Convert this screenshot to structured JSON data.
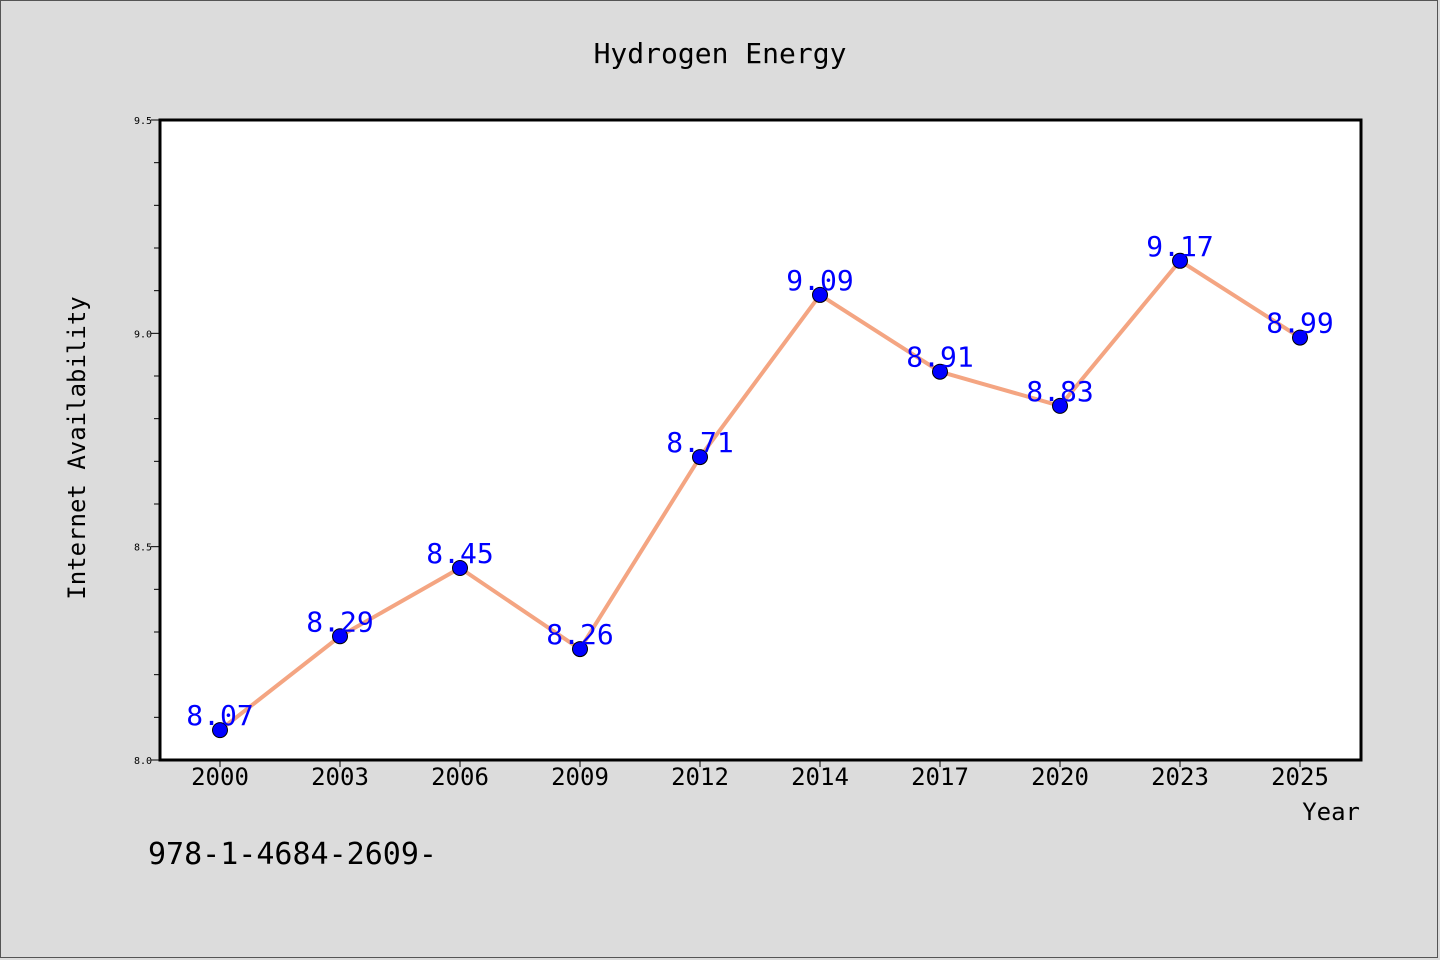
{
  "chart_data": {
    "type": "line",
    "title": "Hydrogen Energy",
    "xlabel": "Year",
    "ylabel": "Internet Availability",
    "categories": [
      "2000",
      "2003",
      "2006",
      "2009",
      "2012",
      "2014",
      "2017",
      "2020",
      "2023",
      "2025"
    ],
    "series": [
      {
        "values": [
          8.07,
          8.29,
          8.45,
          8.26,
          8.71,
          9.09,
          8.91,
          8.83,
          9.17,
          8.99
        ]
      }
    ],
    "ylim": [
      8.0,
      9.5
    ],
    "yticks_major": [
      "8.0",
      "8.5",
      "9.0",
      "9.5"
    ],
    "ytick_minor_step": 0.1,
    "grid": false,
    "data_labels": true
  },
  "annotation": "978-1-4684-2609-",
  "colors": {
    "background": "#dcdcdc",
    "plot_area": "#ffffff",
    "line": "#f4a582",
    "marker": "#0000ff",
    "data_label": "#0000ff",
    "text": "#000000"
  }
}
